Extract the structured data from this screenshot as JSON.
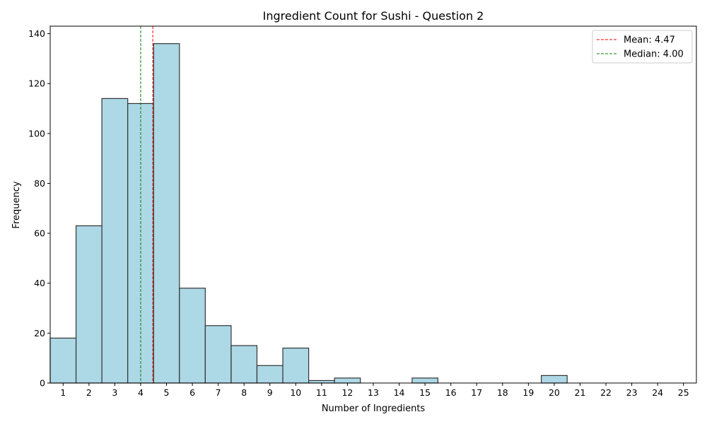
{
  "chart_data": {
    "type": "bar",
    "title": "Ingredient Count for Sushi - Question 2",
    "xlabel": "Number of Ingredients",
    "ylabel": "Frequency",
    "x": [
      1,
      2,
      3,
      4,
      5,
      6,
      7,
      8,
      9,
      10,
      11,
      12,
      13,
      14,
      15,
      16,
      17,
      18,
      19,
      20,
      21,
      22,
      23,
      24,
      25
    ],
    "values": [
      18,
      63,
      114,
      112,
      136,
      38,
      23,
      15,
      7,
      14,
      1,
      2,
      0,
      0,
      2,
      0,
      0,
      0,
      0,
      3,
      0,
      0,
      0,
      0,
      0
    ],
    "xlim": [
      0.5,
      25.5
    ],
    "ylim": [
      0,
      143
    ],
    "yticks": [
      0,
      20,
      40,
      60,
      80,
      100,
      120,
      140
    ],
    "grid": false,
    "bar_color": "#add8e6",
    "bar_edge_color": "#333333",
    "reference_lines": [
      {
        "label": "Mean: 4.47",
        "value": 4.47,
        "color": "#ff0000",
        "style": "dashed"
      },
      {
        "label": "Median: 4.00",
        "value": 4.0,
        "color": "#008000",
        "style": "dashed"
      }
    ],
    "legend_position": "top-right"
  }
}
